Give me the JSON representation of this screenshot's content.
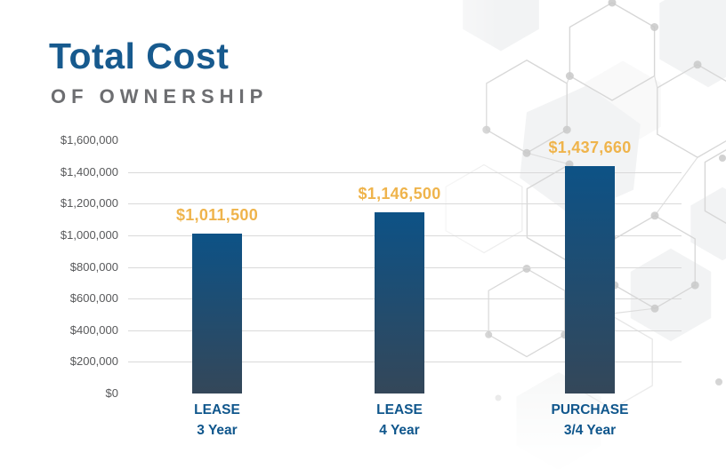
{
  "title": {
    "line1": "Total Cost",
    "line2": "OF OWNERSHIP"
  },
  "colors": {
    "title_blue": "#175a8e",
    "subtitle_gray": "#6d6e71",
    "axis_label_gray": "#58595b",
    "gridline": "#d9d9d9",
    "value_gold": "#efb44c",
    "category_blue": "#0f568c",
    "bar_top": "#0d5286",
    "bar_bottom": "#344759",
    "pattern_gray": "#d7d7d7"
  },
  "chart_data": {
    "type": "bar",
    "title": "Total Cost",
    "subtitle": "OF OWNERSHIP",
    "categories": [
      {
        "line1": "LEASE",
        "line2": "3 Year"
      },
      {
        "line1": "LEASE",
        "line2": "4 Year"
      },
      {
        "line1": "PURCHASE",
        "line2": "3/4 Year"
      }
    ],
    "values": [
      1011500,
      1146500,
      1437660
    ],
    "value_labels": [
      "$1,011,500",
      "$1,146,500",
      "$1,437,660"
    ],
    "ylim": [
      0,
      1600000
    ],
    "y_ticks": [
      {
        "value": 0,
        "label": "$0"
      },
      {
        "value": 200000,
        "label": "$200,000"
      },
      {
        "value": 400000,
        "label": "$400,000"
      },
      {
        "value": 600000,
        "label": "$600,000"
      },
      {
        "value": 800000,
        "label": "$800,000"
      },
      {
        "value": 1000000,
        "label": "$1,000,000"
      },
      {
        "value": 1200000,
        "label": "$1,200,000"
      },
      {
        "value": 1400000,
        "label": "$1,400,000"
      },
      {
        "value": 1600000,
        "label": "$1,600,000"
      }
    ],
    "gridlines_at": [
      200000,
      400000,
      600000,
      800000,
      1000000,
      1200000,
      1400000
    ],
    "grid": true,
    "legend": false,
    "xlabel": "",
    "ylabel": ""
  }
}
